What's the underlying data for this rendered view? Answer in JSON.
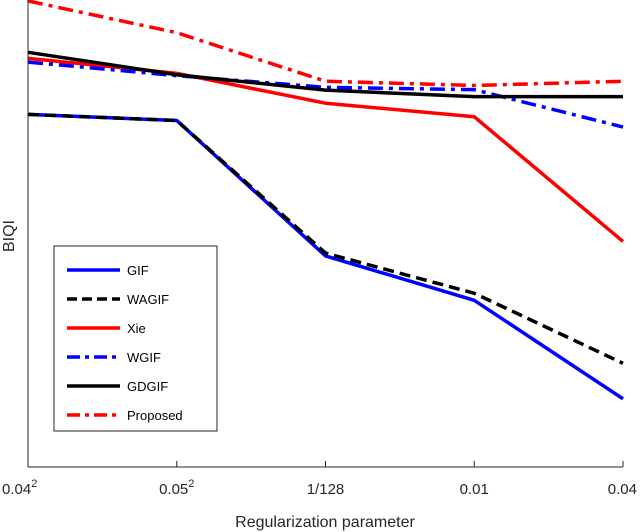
{
  "chart_data": {
    "type": "line",
    "title": "",
    "xlabel": "Regularization parameter",
    "ylabel": "BIQI",
    "x_ticks": [
      {
        "base": "0.04",
        "sup": "2"
      },
      {
        "base": "0.05",
        "sup": "2"
      },
      {
        "base": "1/128",
        "sup": ""
      },
      {
        "base": "0.01",
        "sup": ""
      },
      {
        "base": "0.04",
        "sup": ""
      }
    ],
    "x": [
      "0.04^2",
      "0.05^2",
      "1/128",
      "0.01",
      "0.04"
    ],
    "ylim": [
      0,
      1
    ],
    "y_ticks": [],
    "grid": false,
    "legend_position": "bottom-left",
    "series": [
      {
        "name": "GIF",
        "color": "#0000ff",
        "dash": "solid",
        "values": [
          0.755,
          0.742,
          0.452,
          0.357,
          0.146
        ]
      },
      {
        "name": "WAGIF",
        "color": "#000000",
        "dash": "dashed",
        "values": [
          0.755,
          0.742,
          0.458,
          0.372,
          0.222
        ]
      },
      {
        "name": "Xie",
        "color": "#ff0000",
        "dash": "solid",
        "values": [
          0.875,
          0.843,
          0.779,
          0.75,
          0.483
        ]
      },
      {
        "name": "WGIF",
        "color": "#0000ff",
        "dash": "dashdot",
        "values": [
          0.867,
          0.838,
          0.813,
          0.808,
          0.728
        ]
      },
      {
        "name": "GDGIF",
        "color": "#000000",
        "dash": "solid",
        "values": [
          0.888,
          0.84,
          0.807,
          0.793,
          0.793
        ]
      },
      {
        "name": "Proposed",
        "color": "#ff0000",
        "dash": "dashdot",
        "values": [
          0.998,
          0.93,
          0.826,
          0.817,
          0.826
        ]
      }
    ]
  }
}
